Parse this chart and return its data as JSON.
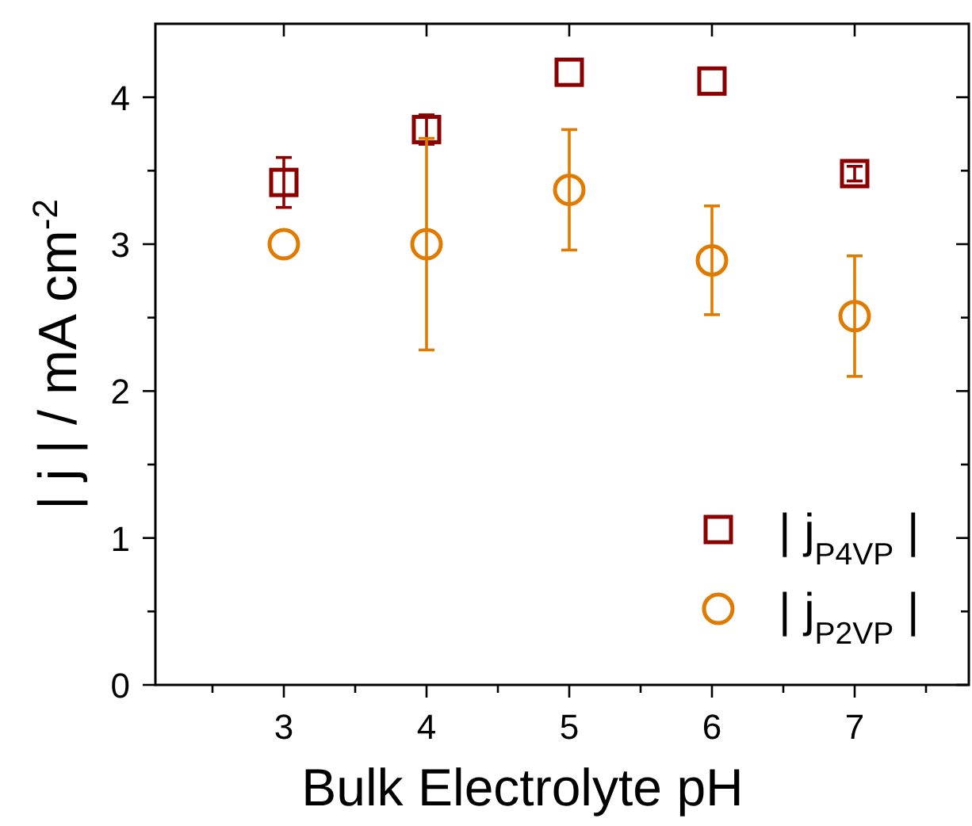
{
  "chart_data": {
    "type": "scatter",
    "xlabel": "Bulk Electrolyte pH",
    "ylabel": "| j | / mA cm$^{-2}$",
    "x": [
      3,
      4,
      5,
      6,
      7
    ],
    "series": [
      {
        "name": "| j$_{P4VP}$ |",
        "color": "#8b0000",
        "marker": "square",
        "values": [
          3.42,
          3.78,
          4.17,
          4.11,
          3.48
        ],
        "errors": [
          0.17,
          0.1,
          null,
          null,
          0.05
        ]
      },
      {
        "name": "| j$_{P2VP}$ |",
        "color": "#e07b00",
        "marker": "circle",
        "values": [
          3.0,
          3.0,
          3.37,
          2.89,
          2.51
        ],
        "errors": [
          null,
          0.72,
          0.41,
          0.37,
          0.41
        ]
      }
    ],
    "xlim": [
      2.1,
      7.8
    ],
    "ylim": [
      0,
      4.5
    ],
    "xticks": [
      {
        "value": 2.5,
        "label": null
      },
      3,
      {
        "value": 3.5,
        "label": null
      },
      4,
      {
        "value": 4.5,
        "label": null
      },
      5,
      {
        "value": 5.5,
        "label": null
      },
      6,
      {
        "value": 6.5,
        "label": null
      },
      7,
      {
        "value": 7.5,
        "label": null
      }
    ],
    "yticks": [
      0,
      {
        "value": 0.5,
        "label": null
      },
      1,
      {
        "value": 1.5,
        "label": null
      },
      2,
      {
        "value": 2.5,
        "label": null
      },
      3,
      {
        "value": 3.5,
        "label": null
      },
      4
    ],
    "legend": "bottom right",
    "grid": false
  }
}
